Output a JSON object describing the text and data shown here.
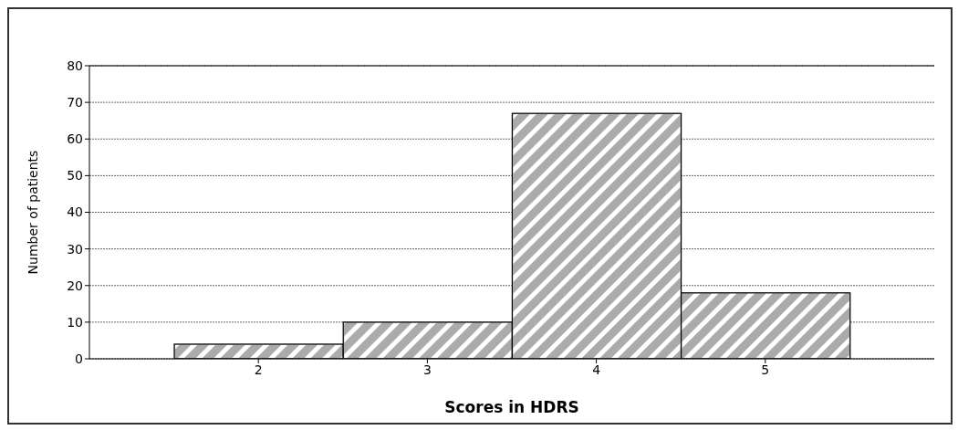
{
  "chart_data": {
    "type": "histogram",
    "xlabel": "Scores in HDRS",
    "ylabel": "Number of patients",
    "bins": [
      1.5,
      2.5,
      3.5,
      4.5,
      5.5
    ],
    "values": [
      4,
      10,
      67,
      18
    ],
    "color": "#aaabad",
    "xlim": [
      1,
      6
    ],
    "xticks": [
      2,
      3,
      4,
      5
    ],
    "ylim": [
      0,
      80
    ],
    "yticks": [
      0,
      10,
      20,
      30,
      40,
      50,
      60,
      70,
      80
    ],
    "grid": "y"
  }
}
